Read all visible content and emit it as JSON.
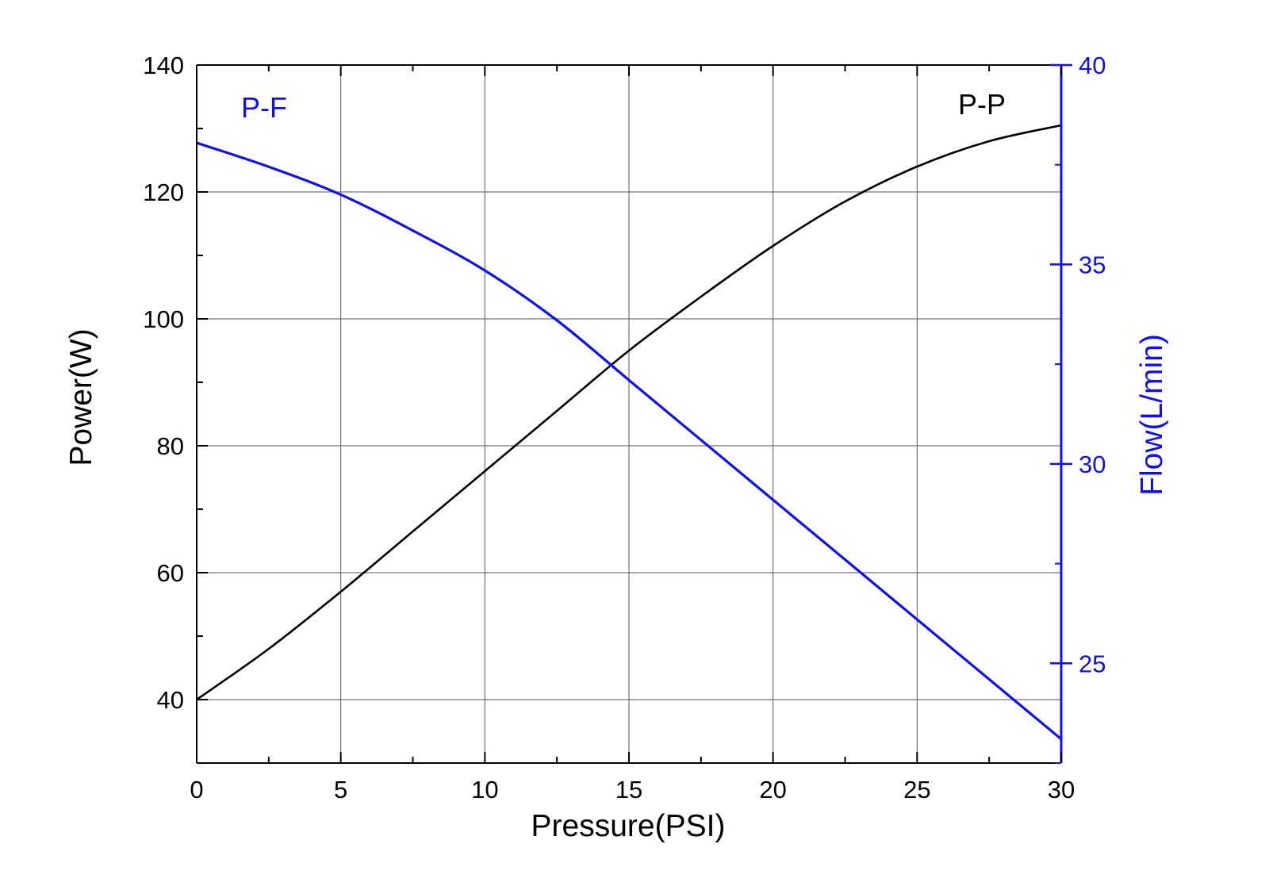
{
  "chart_data": {
    "type": "line",
    "title": "",
    "xlabel": "Pressure(PSI)",
    "ylabel": "Power(W)",
    "y2label": "Flow(L/min)",
    "xlim": [
      0,
      30
    ],
    "ylim": [
      30,
      140
    ],
    "y2lim": [
      22.5,
      40
    ],
    "x_ticks": [
      0,
      5,
      10,
      15,
      20,
      25,
      30
    ],
    "y_ticks": [
      40,
      60,
      80,
      100,
      120,
      140
    ],
    "y2_ticks": [
      25,
      30,
      35,
      40
    ],
    "grid": true,
    "series": [
      {
        "name": "P-P",
        "axis": "left",
        "color": "#000000",
        "label_position": "top-right",
        "x": [
          0,
          2.5,
          5,
          7.5,
          10,
          12.5,
          15,
          17.5,
          20,
          22.5,
          25,
          27.5,
          30
        ],
        "values": [
          40,
          48,
          57,
          66.5,
          76,
          85.5,
          95,
          103.5,
          111.5,
          118.5,
          124,
          128,
          130.5
        ]
      },
      {
        "name": "P-F",
        "axis": "right",
        "color": "#1010ee",
        "label_position": "top-left",
        "x": [
          0,
          2.5,
          5,
          7.5,
          10,
          12.5,
          15,
          17.5,
          20,
          22.5,
          25,
          27.5,
          30
        ],
        "values": [
          38.05,
          37.45,
          36.75,
          35.85,
          34.85,
          33.6,
          32.1,
          30.6,
          29.1,
          27.6,
          26.1,
          24.6,
          23.1
        ]
      }
    ]
  }
}
